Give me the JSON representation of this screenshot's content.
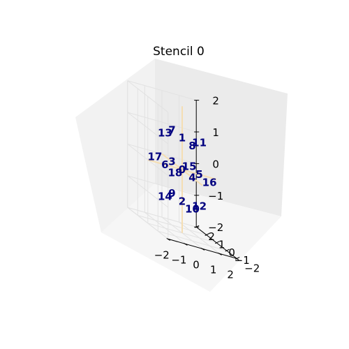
{
  "title": "Stencil 0",
  "colors": {
    "label": "#000080",
    "axis_lines": "#f5deb3",
    "pane_left": "#f2f2f2",
    "pane_right": "#ebebeb",
    "pane_floor": "#f6f6f6",
    "grid": "#e2e2e2"
  },
  "chart_data": {
    "type": "3d-scatter-labels",
    "title": "Stencil 0",
    "grid": true,
    "x_axis": {
      "label": "",
      "range": [
        -2,
        2
      ],
      "ticks": [
        "−2",
        "−1",
        "0",
        "1",
        "2"
      ]
    },
    "y_axis": {
      "label": "",
      "range": [
        -2,
        2
      ],
      "ticks": [
        "−2",
        "−1",
        "0",
        "1",
        "2"
      ]
    },
    "z_axis": {
      "label": "",
      "range": [
        -2,
        2
      ],
      "ticks": [
        "−2",
        "−1",
        "0",
        "1",
        "2"
      ]
    },
    "points": [
      {
        "label": "0",
        "x": 0,
        "y": 0,
        "z": 0
      },
      {
        "label": "1",
        "x": 0,
        "y": 0,
        "z": 1
      },
      {
        "label": "2",
        "x": 0,
        "y": 0,
        "z": -1
      },
      {
        "label": "3",
        "x": 0,
        "y": 1,
        "z": 0
      },
      {
        "label": "4",
        "x": 0,
        "y": -1,
        "z": 0
      },
      {
        "label": "5",
        "x": 1,
        "y": 0,
        "z": 0
      },
      {
        "label": "6",
        "x": -1,
        "y": 0,
        "z": 0
      },
      {
        "label": "7",
        "x": 0,
        "y": 1,
        "z": 1
      },
      {
        "label": "8",
        "x": 0,
        "y": -1,
        "z": 1
      },
      {
        "label": "9",
        "x": 0,
        "y": 1,
        "z": -1
      },
      {
        "label": "10",
        "x": 0,
        "y": -1,
        "z": -1
      },
      {
        "label": "11",
        "x": 1,
        "y": 0,
        "z": 1
      },
      {
        "label": "12",
        "x": 1,
        "y": 0,
        "z": -1
      },
      {
        "label": "13",
        "x": -1,
        "y": 0,
        "z": 1
      },
      {
        "label": "14",
        "x": -1,
        "y": 0,
        "z": -1
      },
      {
        "label": "15",
        "x": 1,
        "y": 1,
        "z": 0
      },
      {
        "label": "16",
        "x": 1,
        "y": -1,
        "z": 0
      },
      {
        "label": "17",
        "x": -1,
        "y": 1,
        "z": 0
      },
      {
        "label": "18",
        "x": -1,
        "y": -1,
        "z": 0
      }
    ]
  }
}
